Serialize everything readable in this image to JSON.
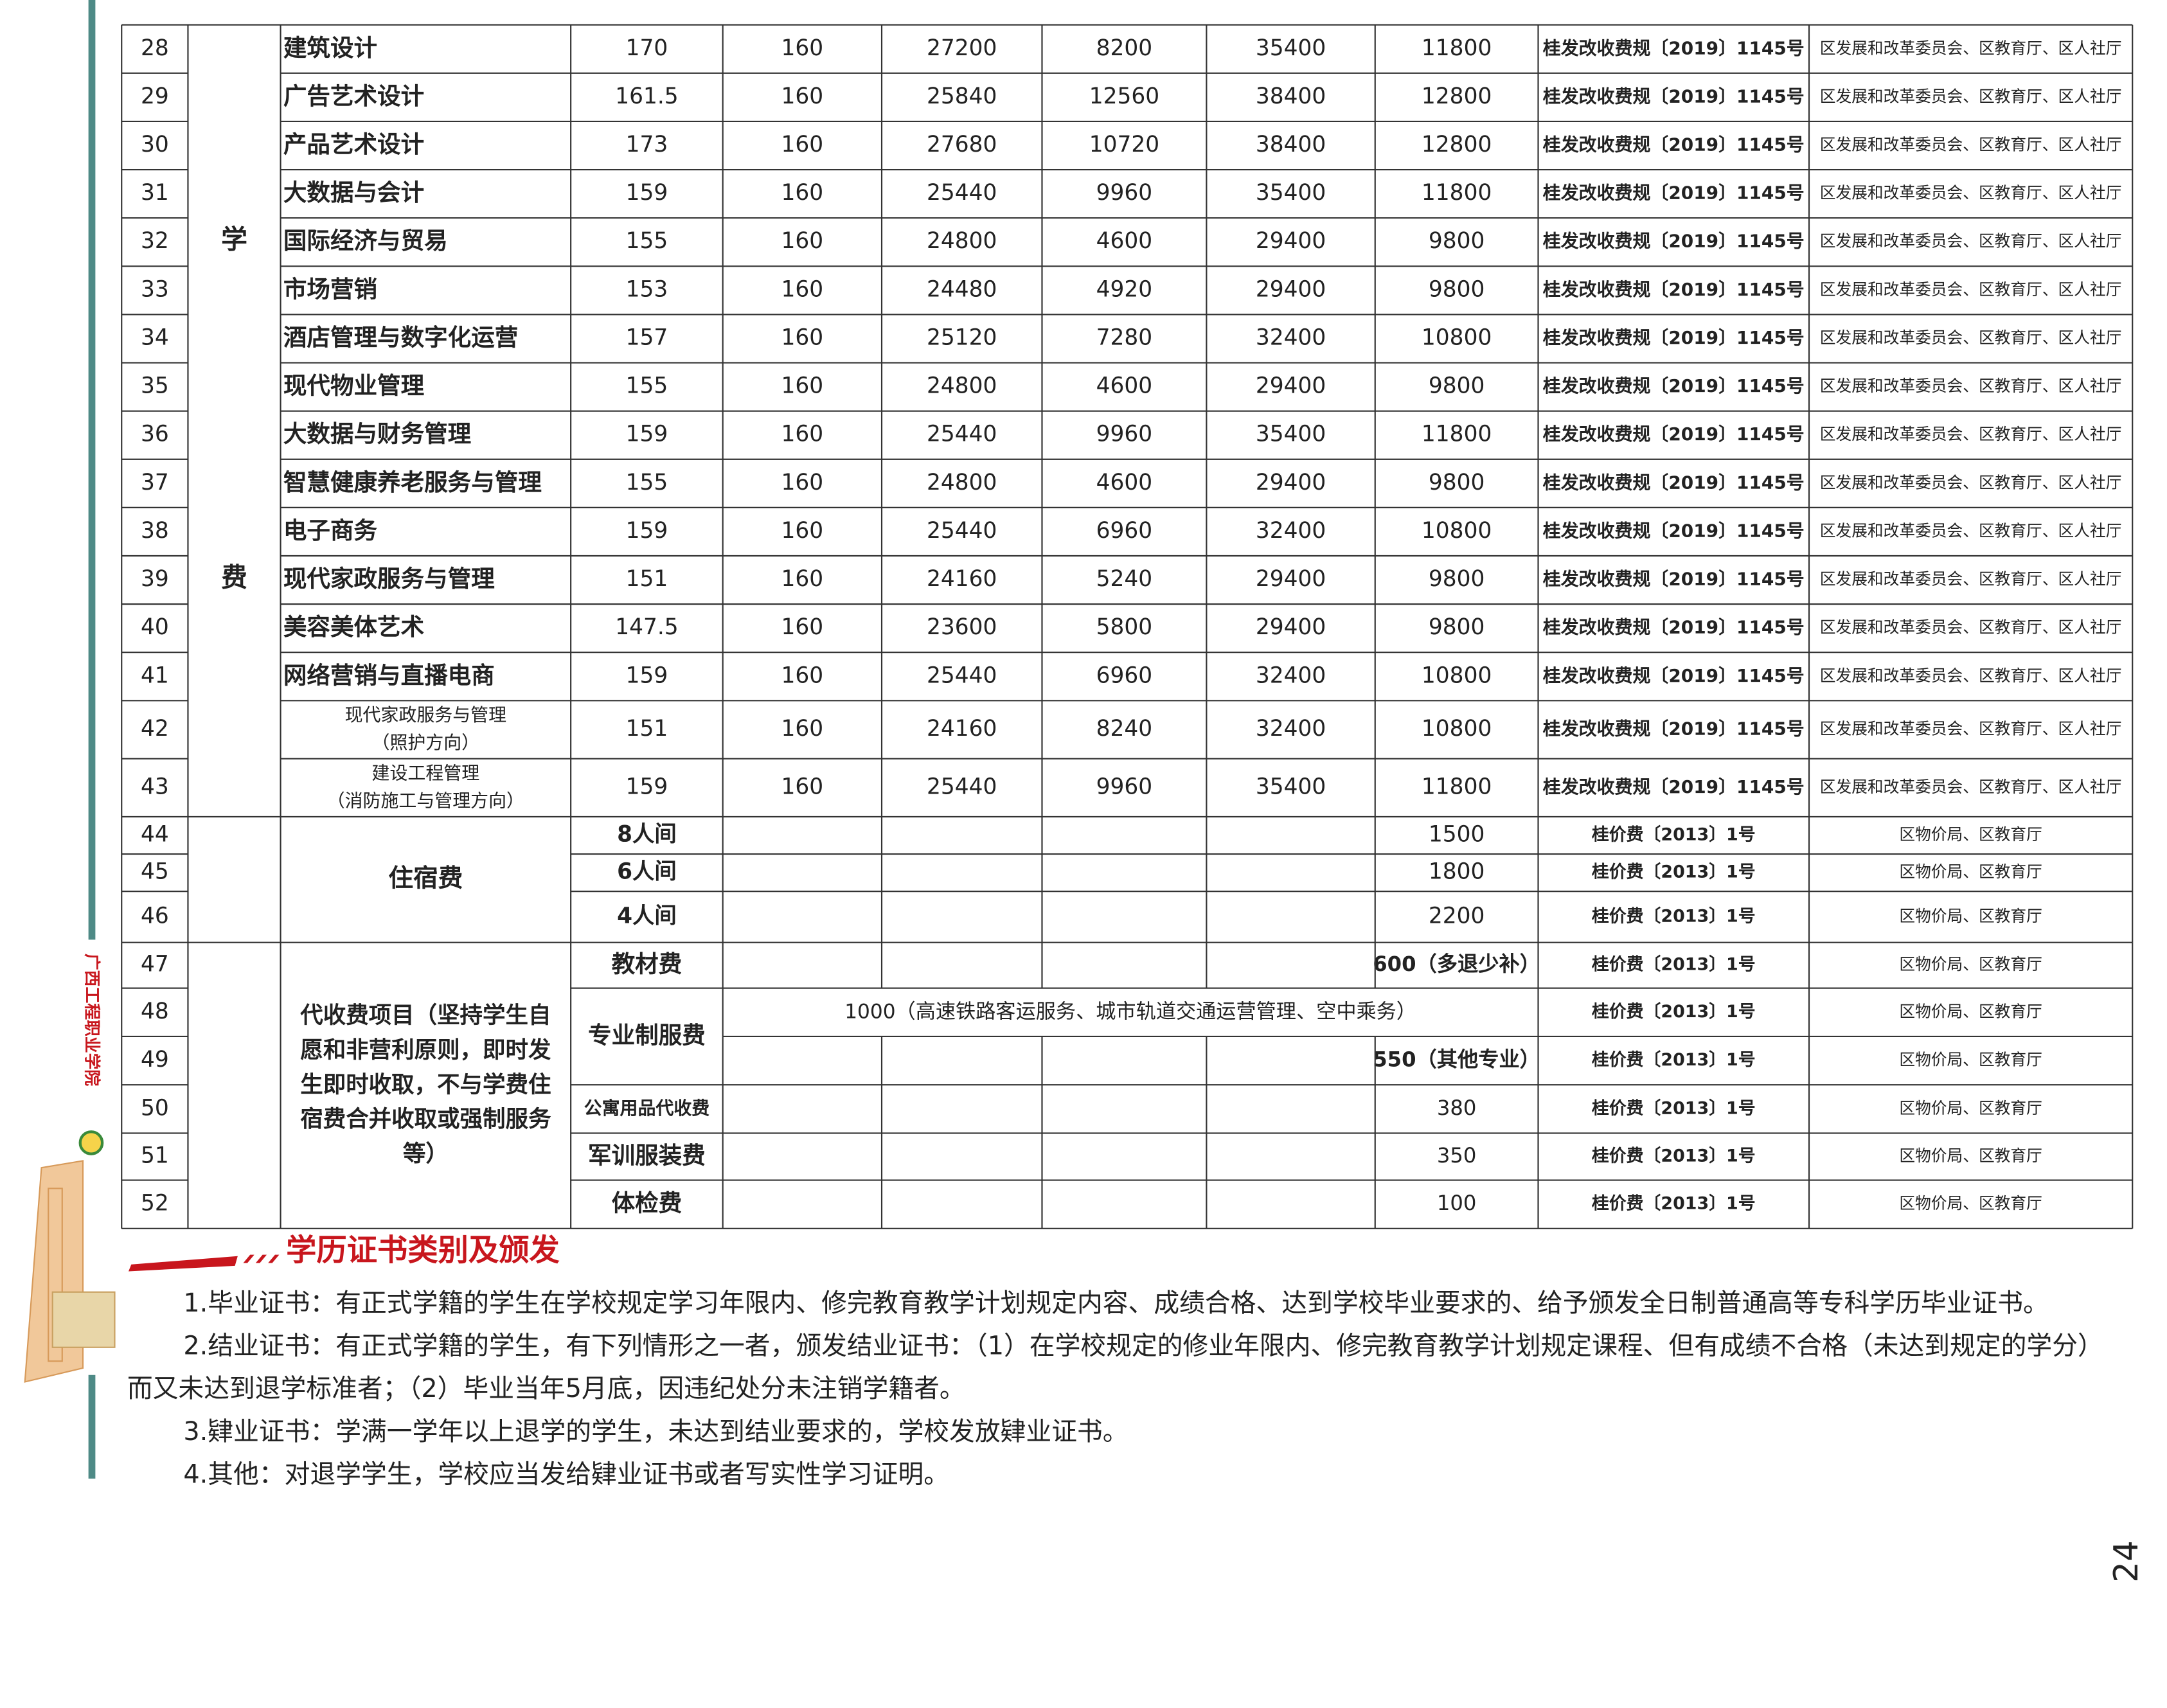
{
  "tuition": {
    "category": [
      "学",
      "费"
    ],
    "rows": [
      {
        "no": "28",
        "major": "建筑设计",
        "values": [
          "170",
          "160",
          "27200",
          "8200",
          "35400",
          "11800"
        ],
        "basis": "桂发改收费规〔2019〕1145号",
        "authority": "区发展和改革委员会、区教育厅、区人社厅"
      },
      {
        "no": "29",
        "major": "广告艺术设计",
        "values": [
          "161.5",
          "160",
          "25840",
          "12560",
          "38400",
          "12800"
        ],
        "basis": "桂发改收费规〔2019〕1145号",
        "authority": "区发展和改革委员会、区教育厅、区人社厅"
      },
      {
        "no": "30",
        "major": "产品艺术设计",
        "values": [
          "173",
          "160",
          "27680",
          "10720",
          "38400",
          "12800"
        ],
        "basis": "桂发改收费规〔2019〕1145号",
        "authority": "区发展和改革委员会、区教育厅、区人社厅"
      },
      {
        "no": "31",
        "major": "大数据与会计",
        "values": [
          "159",
          "160",
          "25440",
          "9960",
          "35400",
          "11800"
        ],
        "basis": "桂发改收费规〔2019〕1145号",
        "authority": "区发展和改革委员会、区教育厅、区人社厅"
      },
      {
        "no": "32",
        "major": "国际经济与贸易",
        "values": [
          "155",
          "160",
          "24800",
          "4600",
          "29400",
          "9800"
        ],
        "basis": "桂发改收费规〔2019〕1145号",
        "authority": "区发展和改革委员会、区教育厅、区人社厅"
      },
      {
        "no": "33",
        "major": "市场营销",
        "values": [
          "153",
          "160",
          "24480",
          "4920",
          "29400",
          "9800"
        ],
        "basis": "桂发改收费规〔2019〕1145号",
        "authority": "区发展和改革委员会、区教育厅、区人社厅"
      },
      {
        "no": "34",
        "major": "酒店管理与数字化运营",
        "values": [
          "157",
          "160",
          "25120",
          "7280",
          "32400",
          "10800"
        ],
        "basis": "桂发改收费规〔2019〕1145号",
        "authority": "区发展和改革委员会、区教育厅、区人社厅"
      },
      {
        "no": "35",
        "major": "现代物业管理",
        "values": [
          "155",
          "160",
          "24800",
          "4600",
          "29400",
          "9800"
        ],
        "basis": "桂发改收费规〔2019〕1145号",
        "authority": "区发展和改革委员会、区教育厅、区人社厅"
      },
      {
        "no": "36",
        "major": "大数据与财务管理",
        "values": [
          "159",
          "160",
          "25440",
          "9960",
          "35400",
          "11800"
        ],
        "basis": "桂发改收费规〔2019〕1145号",
        "authority": "区发展和改革委员会、区教育厅、区人社厅"
      },
      {
        "no": "37",
        "major": "智慧健康养老服务与管理",
        "values": [
          "155",
          "160",
          "24800",
          "4600",
          "29400",
          "9800"
        ],
        "basis": "桂发改收费规〔2019〕1145号",
        "authority": "区发展和改革委员会、区教育厅、区人社厅"
      },
      {
        "no": "38",
        "major": "电子商务",
        "values": [
          "159",
          "160",
          "25440",
          "6960",
          "32400",
          "10800"
        ],
        "basis": "桂发改收费规〔2019〕1145号",
        "authority": "区发展和改革委员会、区教育厅、区人社厅"
      },
      {
        "no": "39",
        "major": "现代家政服务与管理",
        "values": [
          "151",
          "160",
          "24160",
          "5240",
          "29400",
          "9800"
        ],
        "basis": "桂发改收费规〔2019〕1145号",
        "authority": "区发展和改革委员会、区教育厅、区人社厅"
      },
      {
        "no": "40",
        "major": "美容美体艺术",
        "values": [
          "147.5",
          "160",
          "23600",
          "5800",
          "29400",
          "9800"
        ],
        "basis": "桂发改收费规〔2019〕1145号",
        "authority": "区发展和改革委员会、区教育厅、区人社厅"
      },
      {
        "no": "41",
        "major": "网络营销与直播电商",
        "values": [
          "159",
          "160",
          "25440",
          "6960",
          "32400",
          "10800"
        ],
        "basis": "桂发改收费规〔2019〕1145号",
        "authority": "区发展和改革委员会、区教育厅、区人社厅"
      },
      {
        "no": "42",
        "major": "现代家政服务与管理",
        "major_note": "（照护方向）",
        "values": [
          "151",
          "160",
          "24160",
          "8240",
          "32400",
          "10800"
        ],
        "basis": "桂发改收费规〔2019〕1145号",
        "authority": "区发展和改革委员会、区教育厅、区人社厅"
      },
      {
        "no": "43",
        "major": "建设工程管理",
        "major_note": "（消防施工与管理方向）",
        "values": [
          "159",
          "160",
          "25440",
          "9960",
          "35400",
          "11800"
        ],
        "basis": "桂发改收费规〔2019〕1145号",
        "authority": "区发展和改革委员会、区教育厅、区人社厅"
      }
    ]
  },
  "accommodation": {
    "label": "住宿费",
    "rows": [
      {
        "no": "44",
        "room": "8人间",
        "fee": "1500",
        "basis": "桂价费〔2013〕1号",
        "authority": "区物价局、区教育厅"
      },
      {
        "no": "45",
        "room": "6人间",
        "fee": "1800",
        "basis": "桂价费〔2013〕1号",
        "authority": "区物价局、区教育厅"
      },
      {
        "no": "46",
        "room": "4人间",
        "fee": "2200",
        "basis": "桂价费〔2013〕1号",
        "authority": "区物价局、区教育厅"
      }
    ]
  },
  "agency": {
    "label": [
      "代收费项目（坚持学生自",
      "愿和非营利原则，即时发",
      "生即时收取，不与学费住",
      "宿费合并收取或强制服务",
      "等）"
    ],
    "items": [
      {
        "name": "教材费",
        "rows": [
          {
            "no": "47",
            "fee": "600（多退少补）",
            "basis": "桂价费〔2013〕1号",
            "authority": "区物价局、区教育厅"
          }
        ]
      },
      {
        "name": "专业制服费",
        "rows": [
          {
            "no": "48",
            "fee": "1000（高速铁路客运服务、城市轨道交通运营管理、空中乘务）",
            "basis": "桂价费〔2013〕1号",
            "authority": "区物价局、区教育厅"
          },
          {
            "no": "49",
            "fee": "550（其他专业）",
            "basis": "桂价费〔2013〕1号",
            "authority": "区物价局、区教育厅"
          }
        ]
      },
      {
        "name": "公寓用品代收费",
        "rows": [
          {
            "no": "50",
            "fee": "380",
            "basis": "桂价费〔2013〕1号",
            "authority": "区物价局、区教育厅"
          }
        ]
      },
      {
        "name": "军训服装费",
        "rows": [
          {
            "no": "51",
            "fee": "350",
            "basis": "桂价费〔2013〕1号",
            "authority": "区物价局、区教育厅"
          }
        ]
      },
      {
        "name": "体检费",
        "rows": [
          {
            "no": "52",
            "fee": "100",
            "basis": "桂价费〔2013〕1号",
            "authority": "区物价局、区教育厅"
          }
        ]
      }
    ]
  },
  "section": {
    "title": "学历证书类别及颁发",
    "paragraphs": [
      "1.毕业证书：有正式学籍的学生在学校规定学习年限内、修完教育教学计划规定内容、成绩合格、达到学校毕业要求的、给予颁发全日制普通高等专科学历毕业证书。",
      "2.结业证书：有正式学籍的学生，有下列情形之一者，颁发结业证书：（1）在学校规定的修业年限内、修完教育教学计划规定课程、但有成绩不合格（未达到规定的学分）而又未达到退学标准者；（2）毕业当年5月底，因违纪处分未注销学籍者。",
      "3.肄业证书：学满一学年以上退学的学生，未达到结业要求的，学校发放肄业证书。",
      "4.其他：对退学学生，学校应当发给肄业证书或者写实性学习证明。"
    ]
  },
  "side_logo": "广西工程职业学院",
  "page_number": "24"
}
